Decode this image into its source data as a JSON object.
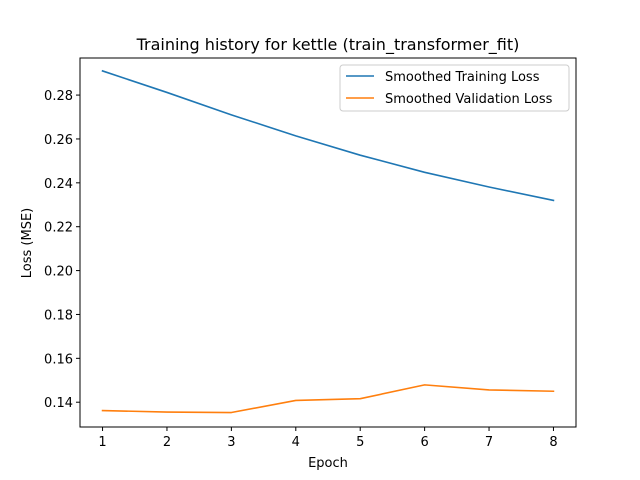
{
  "chart_data": {
    "type": "line",
    "title": "Training history for kettle (train_transformer_fit)",
    "xlabel": "Epoch",
    "ylabel": "Loss (MSE)",
    "x": [
      1,
      2,
      3,
      4,
      5,
      6,
      7,
      8
    ],
    "xticks": [
      1,
      2,
      3,
      4,
      5,
      6,
      7,
      8
    ],
    "yticks": [
      0.14,
      0.16,
      0.18,
      0.2,
      0.22,
      0.24,
      0.26,
      0.28
    ],
    "ytick_labels": [
      "0.14",
      "0.16",
      "0.18",
      "0.20",
      "0.22",
      "0.24",
      "0.26",
      "0.28"
    ],
    "xlim": [
      0.65,
      8.35
    ],
    "ylim": [
      0.1287,
      0.2969
    ],
    "grid": false,
    "legend_position": "top-right",
    "series": [
      {
        "name": "Smoothed Training Loss",
        "color": "#1f77b4",
        "values": [
          0.291,
          0.2812,
          0.271,
          0.2614,
          0.2526,
          0.2448,
          0.2381,
          0.232
        ]
      },
      {
        "name": "Smoothed Validation Loss",
        "color": "#ff7f0e",
        "values": [
          0.1362,
          0.1355,
          0.1353,
          0.1408,
          0.1416,
          0.1479,
          0.1456,
          0.145
        ]
      }
    ]
  }
}
